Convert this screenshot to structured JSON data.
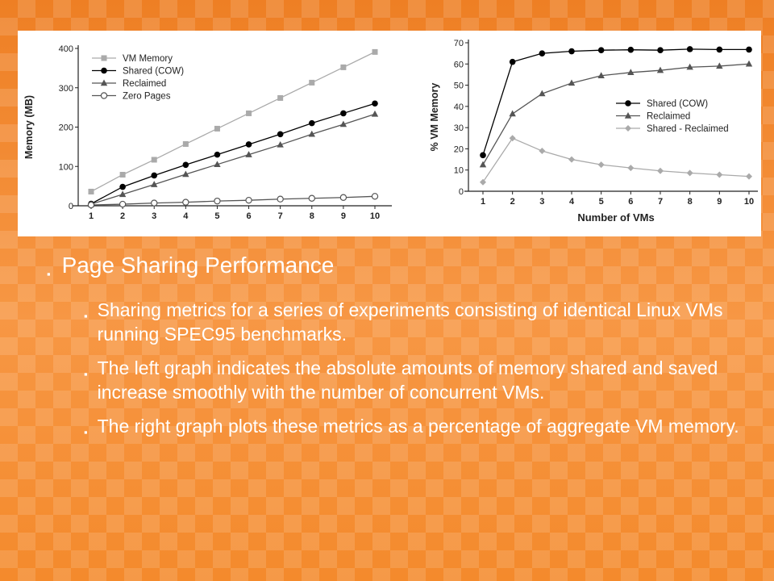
{
  "slide": {
    "title": "Page Sharing Performance",
    "bullet_marker": "▪",
    "bullets": [
      "Sharing metrics for a series of experiments consisting of identical Linux VMs running SPEC95 benchmarks.",
      "The left graph indicates the absolute amounts of memory shared and saved increase smoothly with the number of concurrent VMs.",
      "The right graph plots these metrics as a percentage of aggregate VM memory."
    ]
  },
  "colors": {
    "background": "#f48a2c",
    "text": "#ffffff",
    "series_dark": "#000000",
    "series_mid": "#555555",
    "series_light": "#aaaaaa"
  },
  "chart_data": [
    {
      "type": "line",
      "title": "",
      "xlabel": "",
      "ylabel": "Memory (MB)",
      "x": [
        1,
        2,
        3,
        4,
        5,
        6,
        7,
        8,
        9,
        10
      ],
      "xlim": [
        1,
        10
      ],
      "ylim": [
        0,
        400
      ],
      "yticks": [
        0,
        100,
        200,
        300,
        400
      ],
      "grid": false,
      "legend_position": "top-left",
      "series": [
        {
          "name": "VM Memory",
          "marker": "square",
          "color": "#aaaaaa",
          "values": [
            36,
            79,
            117,
            157,
            196,
            235,
            274,
            313,
            352,
            391
          ]
        },
        {
          "name": "Shared (COW)",
          "marker": "circle",
          "color": "#000000",
          "values": [
            5,
            48,
            77,
            104,
            130,
            156,
            182,
            210,
            235,
            260
          ]
        },
        {
          "name": "Reclaimed",
          "marker": "triangle",
          "color": "#555555",
          "values": [
            4,
            29,
            54,
            80,
            105,
            130,
            155,
            182,
            207,
            233
          ]
        },
        {
          "name": "Zero Pages",
          "marker": "circle-open",
          "color": "#555555",
          "values": [
            2,
            4,
            7,
            9,
            12,
            14,
            17,
            19,
            21,
            24
          ]
        }
      ]
    },
    {
      "type": "line",
      "title": "",
      "xlabel": "Number of VMs",
      "ylabel": "% VM Memory",
      "x": [
        1,
        2,
        3,
        4,
        5,
        6,
        7,
        8,
        9,
        10
      ],
      "xlim": [
        1,
        10
      ],
      "ylim": [
        0,
        70
      ],
      "yticks": [
        0,
        10,
        20,
        30,
        40,
        50,
        60,
        70
      ],
      "grid": false,
      "legend_position": "center-right",
      "series": [
        {
          "name": "Shared (COW)",
          "marker": "circle",
          "color": "#000000",
          "values": [
            17,
            61,
            65,
            66,
            66.5,
            66.7,
            66.5,
            67,
            66.8,
            66.8
          ]
        },
        {
          "name": "Reclaimed",
          "marker": "triangle",
          "color": "#555555",
          "values": [
            12.5,
            36.5,
            46,
            51,
            54.5,
            56,
            57,
            58.5,
            59,
            60
          ]
        },
        {
          "name": "Shared - Reclaimed",
          "marker": "diamond",
          "color": "#aaaaaa",
          "values": [
            4.3,
            25,
            19,
            15,
            12.5,
            11,
            9.6,
            8.6,
            7.8,
            7
          ]
        }
      ]
    }
  ]
}
